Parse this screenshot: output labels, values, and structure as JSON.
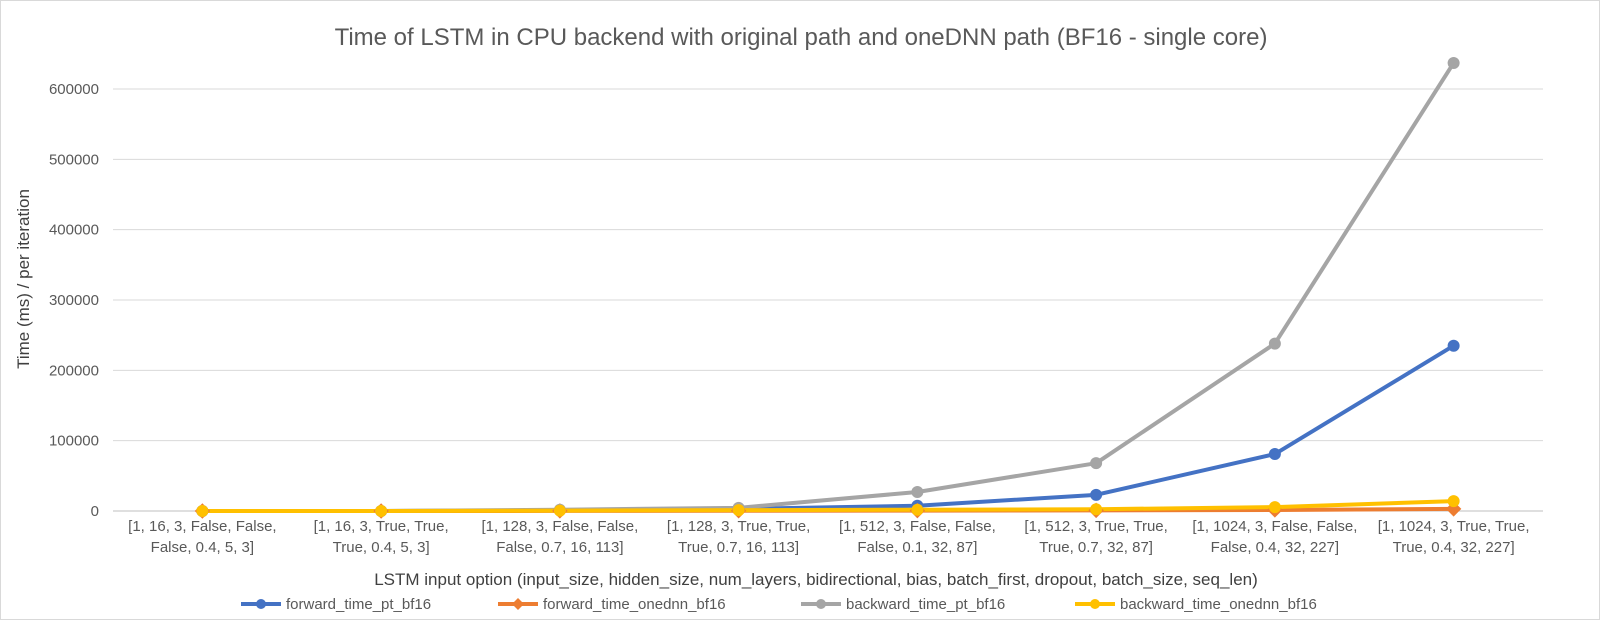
{
  "chart_data": {
    "type": "line",
    "title": "Time of LSTM in CPU backend with original path and oneDNN path (BF16 - single core)",
    "xlabel": "LSTM input option (input_size, hidden_size, num_layers, bidirectional, bias, batch_first, dropout, batch_size, seq_len)",
    "ylabel": "Time (ms) / per iteration",
    "ylim": [
      0,
      600000
    ],
    "yticks": [
      "0",
      "100000",
      "200000",
      "300000",
      "400000",
      "500000",
      "600000"
    ],
    "grid": true,
    "legend_position": "bottom",
    "categories": [
      [
        "[1, 16, 3, False, False,",
        "False, 0.4, 5, 3]"
      ],
      [
        "[1, 16, 3, True, True,",
        "True, 0.4, 5, 3]"
      ],
      [
        "[1, 128, 3, False, False,",
        "False, 0.7, 16, 113]"
      ],
      [
        "[1, 128, 3, True, True,",
        "True, 0.7, 16, 113]"
      ],
      [
        "[1, 512, 3, False, False,",
        "False, 0.1, 32, 87]"
      ],
      [
        "[1, 512, 3, True, True,",
        "True, 0.7, 32, 87]"
      ],
      [
        "[1, 1024, 3, False, False,",
        "False, 0.4, 32, 227]"
      ],
      [
        "[1, 1024, 3, True, True,",
        "True, 0.4, 32, 227]"
      ]
    ],
    "series": [
      {
        "name": "forward_time_pt_bf16",
        "color": "#4472c4",
        "marker": "circle",
        "values": [
          5,
          40,
          900,
          3000,
          7500,
          23000,
          81000,
          235000
        ]
      },
      {
        "name": "forward_time_onednn_bf16",
        "color": "#ed7d31",
        "marker": "diamond",
        "values": [
          2,
          10,
          120,
          350,
          500,
          900,
          1500,
          3000
        ]
      },
      {
        "name": "backward_time_pt_bf16",
        "color": "#a5a5a5",
        "marker": "circle",
        "values": [
          10,
          80,
          1800,
          4500,
          27000,
          68000,
          238000,
          637000
        ]
      },
      {
        "name": "backward_time_onednn_bf16",
        "color": "#ffc000",
        "marker": "circle",
        "values": [
          5,
          30,
          600,
          1200,
          1800,
          2500,
          5500,
          14000
        ]
      }
    ]
  }
}
